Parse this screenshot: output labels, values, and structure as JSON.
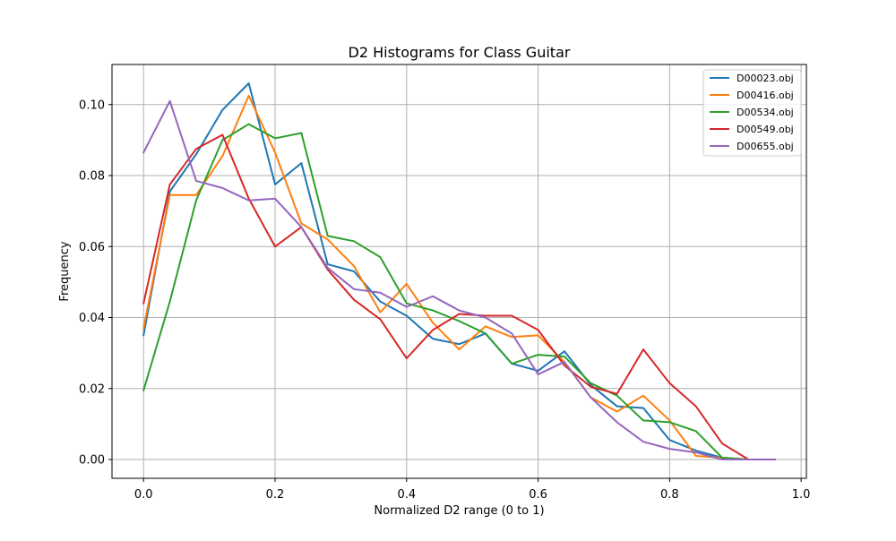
{
  "chart_data": {
    "type": "line",
    "title": "D2 Histograms for Class Guitar",
    "xlabel": "Normalized D2 range (0 to 1)",
    "ylabel": "Frequency",
    "xlim": [
      -0.048,
      1.008
    ],
    "ylim": [
      -0.0053,
      0.1113
    ],
    "grid": true,
    "legend_position": "top-right",
    "xticks": [
      0.0,
      0.2,
      0.4,
      0.6,
      0.8,
      1.0
    ],
    "xtick_labels": [
      "0.0",
      "0.2",
      "0.4",
      "0.6",
      "0.8",
      "1.0"
    ],
    "yticks": [
      0.0,
      0.02,
      0.04,
      0.06,
      0.08,
      0.1
    ],
    "ytick_labels": [
      "0.00",
      "0.02",
      "0.04",
      "0.06",
      "0.08",
      "0.10"
    ],
    "x": [
      0.0,
      0.04,
      0.08,
      0.12,
      0.16,
      0.2,
      0.24,
      0.28,
      0.32,
      0.36,
      0.4,
      0.44,
      0.48,
      0.52,
      0.56,
      0.6,
      0.64,
      0.68,
      0.72,
      0.76,
      0.8,
      0.84,
      0.88,
      0.92,
      0.96
    ],
    "series": [
      {
        "name": "D00023.obj",
        "color": "#1f77b4",
        "values": [
          0.035,
          0.0755,
          0.086,
          0.0985,
          0.106,
          0.0775,
          0.0835,
          0.055,
          0.053,
          0.0445,
          0.0405,
          0.034,
          0.0325,
          0.0355,
          0.027,
          0.025,
          0.0305,
          0.021,
          0.015,
          0.0145,
          0.0055,
          0.0025,
          0.0005,
          0.0,
          0.0
        ]
      },
      {
        "name": "D00416.obj",
        "color": "#ff7f0e",
        "values": [
          0.037,
          0.0745,
          0.0745,
          0.0855,
          0.1025,
          0.0865,
          0.0665,
          0.062,
          0.0545,
          0.0415,
          0.0495,
          0.0385,
          0.031,
          0.0375,
          0.0345,
          0.035,
          0.0275,
          0.0175,
          0.0135,
          0.018,
          0.011,
          0.001,
          0.0005,
          0.0,
          0.0
        ]
      },
      {
        "name": "D00534.obj",
        "color": "#2ca02c",
        "values": [
          0.0195,
          0.0445,
          0.073,
          0.09,
          0.0945,
          0.0905,
          0.092,
          0.063,
          0.0615,
          0.057,
          0.044,
          0.042,
          0.039,
          0.0355,
          0.027,
          0.0295,
          0.029,
          0.0215,
          0.018,
          0.011,
          0.0105,
          0.008,
          0.0005,
          0.0,
          0.0
        ]
      },
      {
        "name": "D00549.obj",
        "color": "#d62728",
        "values": [
          0.044,
          0.0775,
          0.0875,
          0.0915,
          0.0735,
          0.06,
          0.0655,
          0.0535,
          0.045,
          0.0395,
          0.0285,
          0.0365,
          0.041,
          0.0405,
          0.0405,
          0.0365,
          0.0265,
          0.0205,
          0.0185,
          0.031,
          0.0215,
          0.015,
          0.0045,
          0.0,
          0.0
        ]
      },
      {
        "name": "D00655.obj",
        "color": "#9467bd",
        "values": [
          0.0865,
          0.101,
          0.0785,
          0.0765,
          0.073,
          0.0735,
          0.0655,
          0.054,
          0.048,
          0.047,
          0.043,
          0.046,
          0.042,
          0.04,
          0.0355,
          0.024,
          0.0275,
          0.0175,
          0.0105,
          0.005,
          0.003,
          0.002,
          0.0,
          0.0,
          0.0
        ]
      }
    ]
  }
}
